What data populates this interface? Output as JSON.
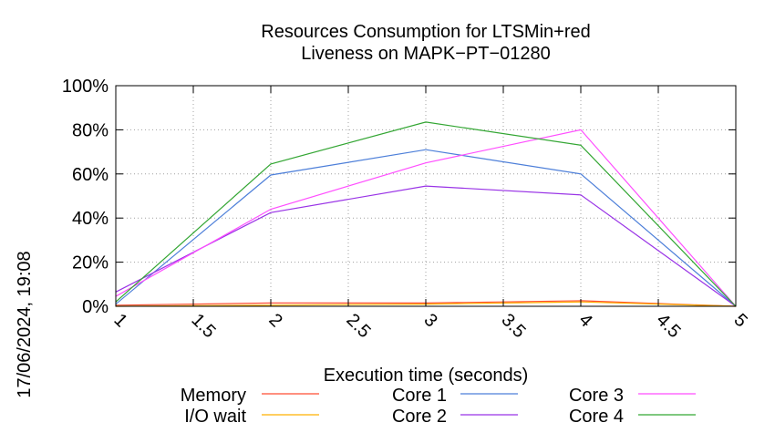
{
  "timestamp": "17/06/2024, 19:08",
  "chart_data": {
    "type": "line",
    "title": [
      "Resources Consumption for LTSMin+red",
      "Liveness on MAPK−PT−01280"
    ],
    "xlabel": "Execution time (seconds)",
    "ylabel": "",
    "xlim": [
      1,
      5
    ],
    "ylim": [
      0,
      100
    ],
    "x_ticks": [
      "1",
      "1.5",
      "2",
      "2.5",
      "3",
      "3.5",
      "4",
      "4.5",
      "5"
    ],
    "y_ticks": [
      "0%",
      "20%",
      "40%",
      "60%",
      "80%",
      "100%"
    ],
    "grid": true,
    "legend": "bottom",
    "x": [
      1,
      2,
      3,
      4,
      5
    ],
    "series": [
      {
        "name": "Memory",
        "color": "#ff4d33",
        "values": [
          0.5,
          1.5,
          1.5,
          2.5,
          0
        ]
      },
      {
        "name": "I/O wait",
        "color": "#ffb000",
        "values": [
          0,
          0.5,
          1,
          2,
          0
        ]
      },
      {
        "name": "Core 1",
        "color": "#4d7fd9",
        "values": [
          1,
          59.5,
          71,
          60,
          0
        ]
      },
      {
        "name": "Core 2",
        "color": "#9933e6",
        "values": [
          6.5,
          42.5,
          54.5,
          50.5,
          0
        ]
      },
      {
        "name": "Core 3",
        "color": "#ff4dff",
        "values": [
          4.5,
          44,
          65,
          80,
          0
        ]
      },
      {
        "name": "Core 4",
        "color": "#33a633",
        "values": [
          2,
          64.5,
          83.5,
          73,
          0
        ]
      }
    ]
  }
}
